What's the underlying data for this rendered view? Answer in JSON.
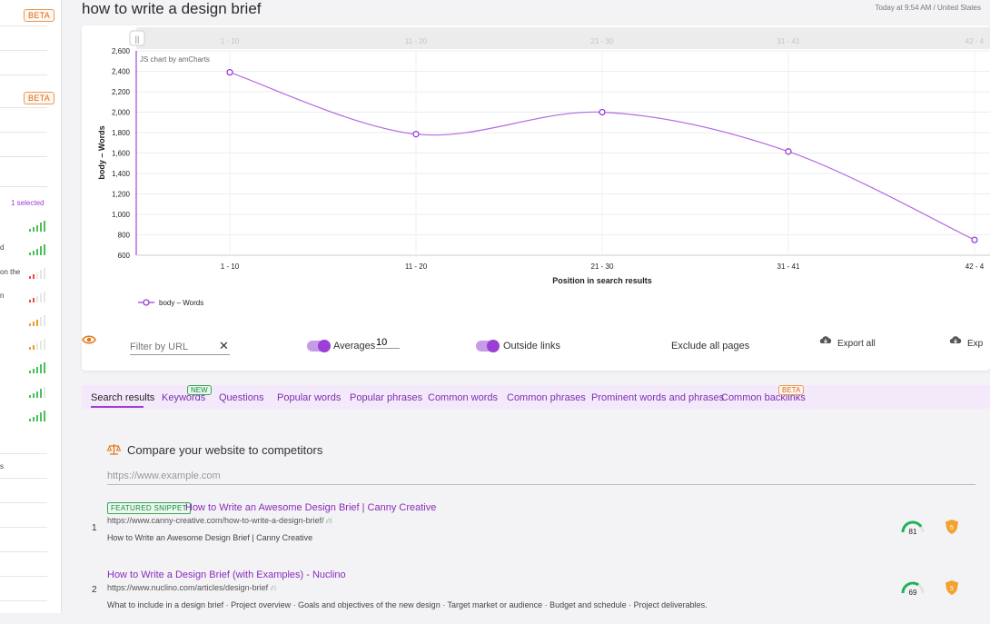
{
  "sidebar": {
    "beta_1": "BETA",
    "beta_2": "BETA",
    "selected_count": "1 selected",
    "snippets": [
      "d",
      "on the",
      "n",
      "s"
    ],
    "signal_rows": [
      {
        "level": 4,
        "color": "#4bbf5a"
      },
      {
        "level": 4,
        "color": "#4bbf5a"
      },
      {
        "level": 1,
        "color": "#e84a4a"
      },
      {
        "level": 1,
        "color": "#e84a4a"
      },
      {
        "level": 2,
        "color": "#f09a2a"
      },
      {
        "level": 1,
        "color": "#f09a2a"
      },
      {
        "level": 4,
        "color": "#4bbf5a"
      },
      {
        "level": 3,
        "color": "#4bbf5a"
      },
      {
        "level": 4,
        "color": "#4bbf5a"
      }
    ]
  },
  "header": {
    "title": "how to write a design brief",
    "meta": "Today at 9:54 AM / United States"
  },
  "chart_data": {
    "type": "line",
    "credit": "JS chart by amCharts",
    "categories": [
      "1 - 10",
      "11 - 20",
      "21 - 30",
      "31 - 41",
      "42 - 4"
    ],
    "series": [
      {
        "name": "body – Words",
        "values": [
          2390,
          1785,
          2000,
          1615,
          750
        ],
        "color": "#9b3fd6"
      }
    ],
    "xlabel": "Position in search results",
    "ylabel": "body – Words",
    "ylim": [
      600,
      2600
    ],
    "yticks": [
      "600",
      "800",
      "1,000",
      "1,200",
      "1,400",
      "1,600",
      "1,800",
      "2,000",
      "2,200",
      "2,400",
      "2,600"
    ],
    "grid": true,
    "legend": "bottom-left"
  },
  "controls": {
    "filter_placeholder": "Filter by URL",
    "averages_label": "Averages",
    "averages_value": "10",
    "outside_links_label": "Outside links",
    "exclude_label": "Exclude all pages",
    "export_all_label": "Export all",
    "export_label": "Exp"
  },
  "tabs": [
    {
      "label": "Search results"
    },
    {
      "label": "Keywords",
      "badge": "NEW"
    },
    {
      "label": "Questions"
    },
    {
      "label": "Popular words"
    },
    {
      "label": "Popular phrases"
    },
    {
      "label": "Common words"
    },
    {
      "label": "Common phrases"
    },
    {
      "label": "Prominent words and phrases"
    },
    {
      "label": "Common backlinks",
      "badge": "BETA"
    }
  ],
  "compare": {
    "title": "Compare your website to competitors",
    "placeholder": "https://www.example.com"
  },
  "results": [
    {
      "rank": "1",
      "badge": "FEATURED SNIPPET",
      "title": "How to Write an Awesome Design Brief | Canny Creative",
      "url": "https://www.canny-creative.com/how-to-write-a-design-brief/",
      "description": "How to Write an Awesome Design Brief | Canny Creative",
      "score": "81",
      "score_fraction": 0.81,
      "authority": "5"
    },
    {
      "rank": "2",
      "title": "How to Write a Design Brief (with Examples) - Nuclino",
      "url": "https://www.nuclino.com/articles/design-brief",
      "description": "What to include in a design brief · Project overview · Goals and objectives of the new design · Target market or audience · Budget and schedule · Project deliverables.",
      "score": "69",
      "score_fraction": 0.69,
      "authority": "5"
    }
  ]
}
